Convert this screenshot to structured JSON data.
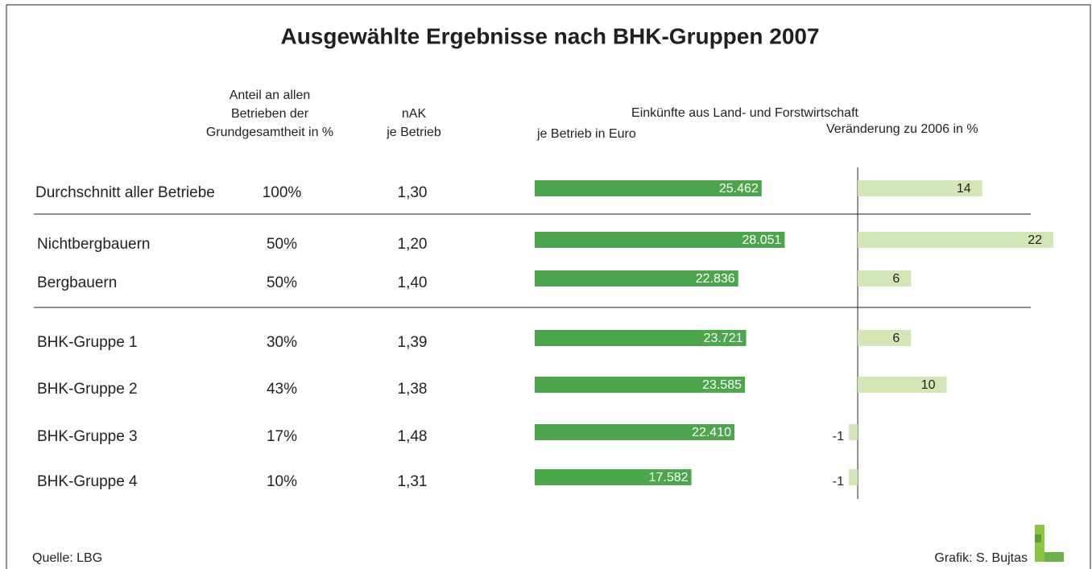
{
  "chart_data": {
    "type": "bar",
    "title": "Ausgewählte Ergebnisse nach BHK-Gruppen 2007",
    "headers": {
      "share": [
        "Anteil an allen",
        "Betrieben der",
        "Grundgesamtheit in %"
      ],
      "nak": [
        "nAK",
        "je Betrieb"
      ],
      "income": "Einkünfte aus Land- und Forstwirtschaft"
    },
    "categories": [
      "Durchschnitt aller Betriebe",
      "Nichtbergbauern",
      "Bergbauern",
      "BHK-Gruppe 1",
      "BHK-Gruppe 2",
      "BHK-Gruppe 3",
      "BHK-Gruppe 4"
    ],
    "share": [
      "100%",
      "50%",
      "50%",
      "30%",
      "43%",
      "17%",
      "10%"
    ],
    "nak": [
      "1,30",
      "1,20",
      "1,40",
      "1,39",
      "1,38",
      "1,48",
      "1,31"
    ],
    "series": [
      {
        "name": "je Betrieb in Euro",
        "color": "#4ca64c",
        "values": [
          25462,
          28051,
          22836,
          23721,
          23585,
          22410,
          17582
        ],
        "value_labels": [
          "25.462",
          "28.051",
          "22.836",
          "23.721",
          "23.585",
          "22.410",
          "17.582"
        ]
      },
      {
        "name": "Veränderung zu 2006 in %",
        "color": "#d3e6b5",
        "axis": "x2",
        "values": [
          14,
          22,
          6,
          6,
          10,
          -1,
          -1
        ]
      }
    ],
    "xlim": [
      0,
      30000
    ],
    "x2lim": [
      -2,
      22
    ],
    "source": "Quelle: LBG",
    "credit": "Grafik: S. Bujtas"
  }
}
